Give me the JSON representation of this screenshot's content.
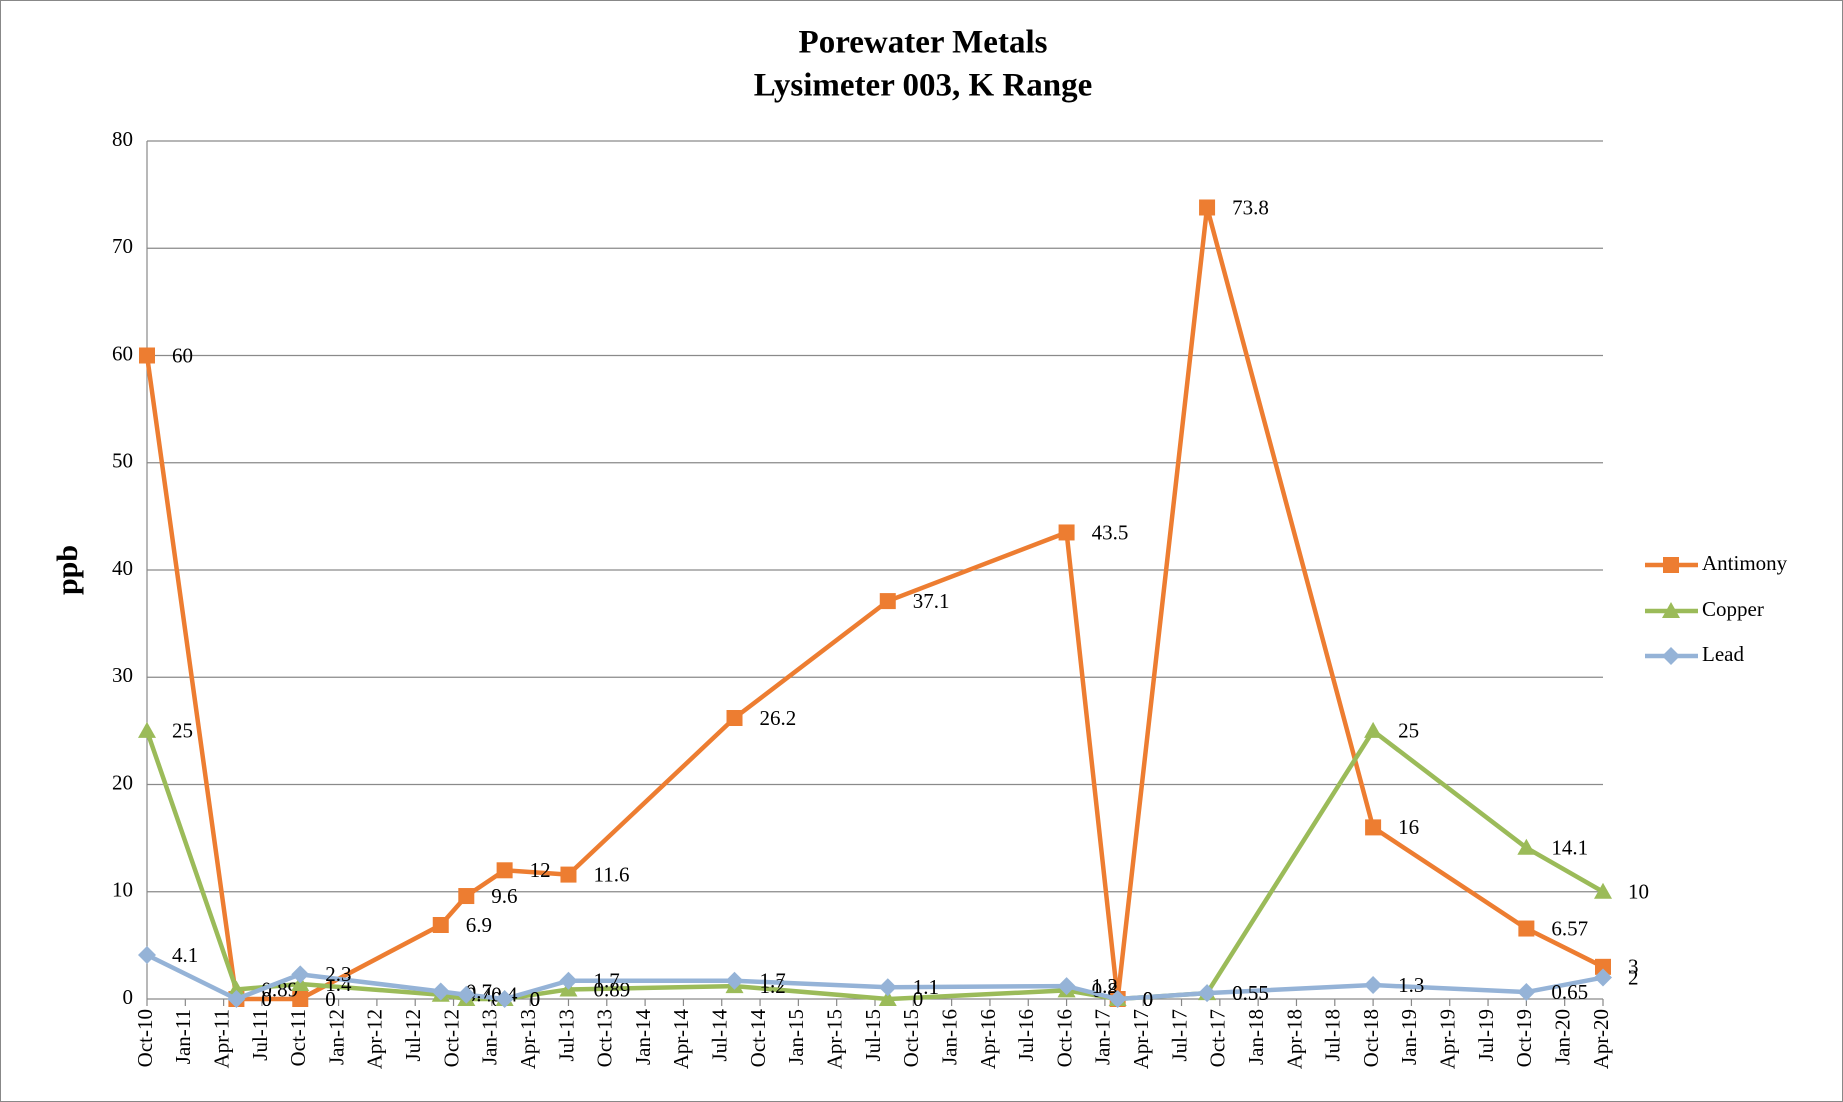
{
  "chart_data": {
    "type": "line",
    "title": "Porewater Metals",
    "subtitle": "Lysimeter 003, K Range",
    "y_label": "ppb",
    "x": [
      "Oct-10",
      "May-11",
      "Oct-11",
      "Sep-12",
      "Nov-12",
      "Feb-13",
      "Jul-13",
      "Aug-14",
      "Aug-15",
      "Oct-16",
      "Feb-17",
      "Sep-17",
      "Oct-18",
      "Oct-19",
      "Apr-20"
    ],
    "series": [
      {
        "name": "Antimony",
        "color": "#ed7d31",
        "marker": "square",
        "values": [
          60,
          0,
          0,
          6.9,
          9.6,
          12,
          11.6,
          26.2,
          37.1,
          43.5,
          0,
          73.8,
          16,
          6.57,
          3
        ]
      },
      {
        "name": "Copper",
        "color": "#9bbb59",
        "marker": "triangle",
        "values": [
          25,
          0.89,
          1.4,
          0.4,
          0,
          0,
          0.89,
          1.2,
          0,
          0.8,
          0,
          0.55,
          25,
          14.1,
          10
        ]
      },
      {
        "name": "Lead",
        "color": "#95b3d7",
        "marker": "diamond",
        "values": [
          4.1,
          0,
          2.3,
          0.7,
          0.4,
          0,
          1.7,
          1.7,
          1.1,
          1.2,
          0,
          0.55,
          1.3,
          0.65,
          2
        ]
      }
    ],
    "xlim": [
      "Oct-10",
      "Apr-20"
    ],
    "xticks": [
      "Oct-10",
      "Jan-11",
      "Apr-11",
      "Jul-11",
      "Oct-11",
      "Jan-12",
      "Apr-12",
      "Jul-12",
      "Oct-12",
      "Jan-13",
      "Apr-13",
      "Jul-13",
      "Oct-13",
      "Jan-14",
      "Apr-14",
      "Jul-14",
      "Oct-14",
      "Jan-15",
      "Apr-15",
      "Jul-15",
      "Oct-15",
      "Jan-16",
      "Apr-16",
      "Jul-16",
      "Oct-16",
      "Jan-17",
      "Apr-17",
      "Jul-17",
      "Oct-17",
      "Jan-18",
      "Apr-18",
      "Jul-18",
      "Oct-18",
      "Jan-19",
      "Apr-19",
      "Jul-19",
      "Oct-19",
      "Jan-20",
      "Apr-20"
    ],
    "ylim": [
      0,
      80
    ],
    "yticks": [
      0,
      10,
      20,
      30,
      40,
      50,
      60,
      70,
      80
    ],
    "grid": true,
    "legend": "right"
  }
}
